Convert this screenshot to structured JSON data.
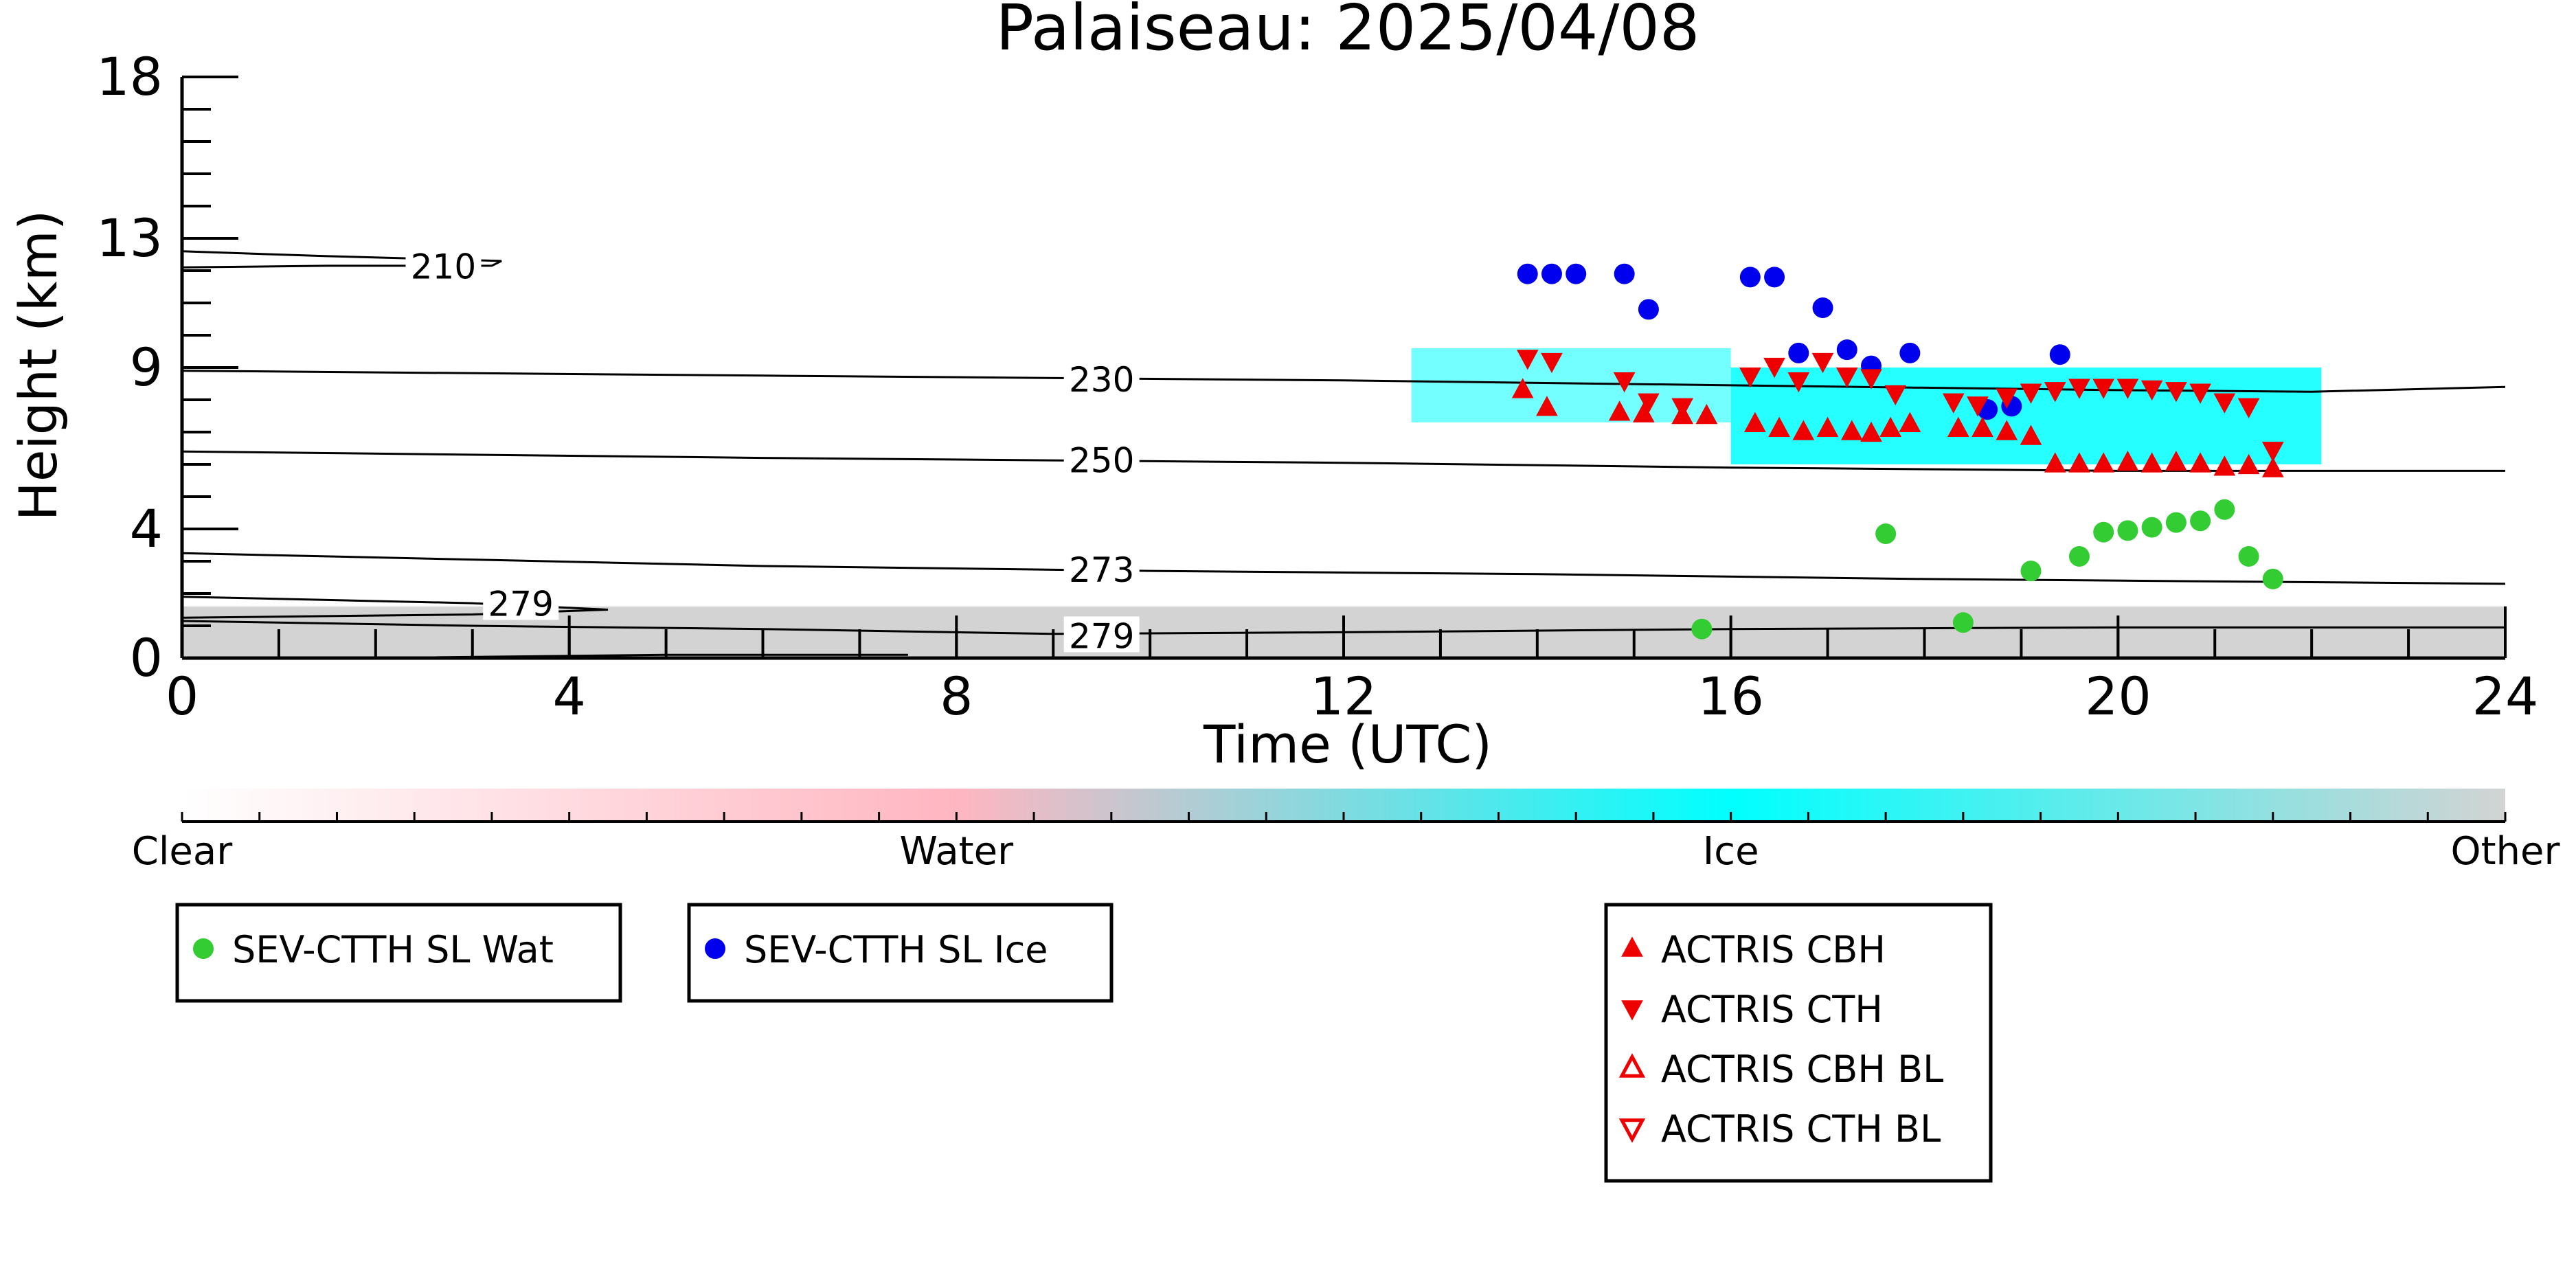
{
  "chart_data": {
    "type": "scatter",
    "title": "Palaiseau: 2025/04/08",
    "xlabel": "Time (UTC)",
    "ylabel": "Height (km)",
    "xlim": [
      0,
      24
    ],
    "ylim": [
      0,
      18
    ],
    "xticks": [
      0,
      4,
      8,
      12,
      16,
      20,
      24
    ],
    "yticks": [
      0,
      4,
      9,
      13,
      18
    ],
    "colorbar": {
      "labels": [
        "Clear",
        "Water",
        "Ice",
        "Other"
      ],
      "colors": [
        "#ffffff",
        "#ffb6c1",
        "#00ffff",
        "#d3d3d3"
      ]
    },
    "isotherms": [
      {
        "label": "210",
        "points": [
          [
            0,
            12.6
          ],
          [
            1.5,
            12.45
          ],
          [
            3.3,
            12.3
          ],
          [
            3.2,
            12.15
          ],
          [
            1.5,
            12.15
          ],
          [
            0,
            12.1
          ]
        ],
        "label_at": [
          2.7,
          12.1
        ]
      },
      {
        "label": "230",
        "points": [
          [
            0,
            8.9
          ],
          [
            6,
            8.75
          ],
          [
            12,
            8.6
          ],
          [
            16,
            8.45
          ],
          [
            20,
            8.3
          ],
          [
            22,
            8.25
          ],
          [
            24,
            8.4
          ]
        ],
        "label_at": [
          9.5,
          8.6
        ]
      },
      {
        "label": "250",
        "points": [
          [
            0,
            6.4
          ],
          [
            6,
            6.2
          ],
          [
            12,
            6.05
          ],
          [
            16,
            5.9
          ],
          [
            20,
            5.8
          ],
          [
            24,
            5.8
          ]
        ],
        "label_at": [
          9.5,
          6.1
        ]
      },
      {
        "label": "273",
        "points": [
          [
            0,
            3.25
          ],
          [
            3,
            3.05
          ],
          [
            6,
            2.85
          ],
          [
            10,
            2.7
          ],
          [
            14,
            2.6
          ],
          [
            18,
            2.45
          ],
          [
            22,
            2.35
          ],
          [
            24,
            2.3
          ]
        ],
        "label_at": [
          9.5,
          2.7
        ]
      },
      {
        "label": "279",
        "points": [
          [
            0,
            1.9
          ],
          [
            1.5,
            1.8
          ],
          [
            3,
            1.7
          ],
          [
            4.4,
            1.5
          ],
          [
            3,
            1.35
          ],
          [
            1.5,
            1.3
          ],
          [
            0,
            1.25
          ]
        ],
        "label_at": [
          3.5,
          1.65
        ]
      },
      {
        "label": "279",
        "points": [
          [
            0,
            1.15
          ],
          [
            3,
            1.0
          ],
          [
            6,
            0.9
          ],
          [
            9,
            0.75
          ],
          [
            12,
            0.8
          ],
          [
            16,
            0.9
          ],
          [
            20,
            0.95
          ],
          [
            24,
            0.95
          ]
        ],
        "label_at": [
          9.5,
          0.65
        ]
      },
      {
        "label": "",
        "points": [
          [
            2.5,
            0.02
          ],
          [
            5,
            0.1
          ],
          [
            7.5,
            0.1
          ]
        ],
        "label_at": null
      }
    ],
    "series": [
      {
        "name": "SEV-CTTH SL Wat",
        "marker": "circle",
        "color": "#33cc33",
        "points": [
          [
            15.7,
            0.9
          ],
          [
            17.6,
            3.85
          ],
          [
            18.4,
            1.1
          ],
          [
            19.1,
            2.7
          ],
          [
            19.6,
            3.15
          ],
          [
            19.85,
            3.9
          ],
          [
            20.1,
            3.95
          ],
          [
            20.35,
            4.05
          ],
          [
            20.6,
            4.2
          ],
          [
            20.85,
            4.25
          ],
          [
            21.1,
            4.6
          ],
          [
            21.35,
            3.15
          ],
          [
            21.6,
            2.45
          ]
        ]
      },
      {
        "name": "SEV-CTTH SL Ice",
        "marker": "circle",
        "color": "#0000ee",
        "points": [
          [
            13.9,
            11.9
          ],
          [
            14.15,
            11.9
          ],
          [
            14.4,
            11.9
          ],
          [
            14.9,
            11.9
          ],
          [
            15.15,
            10.8
          ],
          [
            16.2,
            11.8
          ],
          [
            16.45,
            11.8
          ],
          [
            16.95,
            10.85
          ],
          [
            16.7,
            9.45
          ],
          [
            17.2,
            9.55
          ],
          [
            17.45,
            9.05
          ],
          [
            17.85,
            9.45
          ],
          [
            18.65,
            7.7
          ],
          [
            18.9,
            7.8
          ],
          [
            19.4,
            9.4
          ]
        ]
      },
      {
        "name": "ACTRIS CBH",
        "marker": "triangle-up",
        "color": "#ee0000",
        "points": [
          [
            13.85,
            8.3
          ],
          [
            14.1,
            7.75
          ],
          [
            14.85,
            7.6
          ],
          [
            15.1,
            7.55
          ],
          [
            15.5,
            7.5
          ],
          [
            15.75,
            7.5
          ],
          [
            16.25,
            7.25
          ],
          [
            16.5,
            7.1
          ],
          [
            16.75,
            7.0
          ],
          [
            17.0,
            7.1
          ],
          [
            17.25,
            7.0
          ],
          [
            17.45,
            6.95
          ],
          [
            17.65,
            7.1
          ],
          [
            17.85,
            7.25
          ],
          [
            18.35,
            7.1
          ],
          [
            18.6,
            7.1
          ],
          [
            18.85,
            7.0
          ],
          [
            19.1,
            6.85
          ],
          [
            19.35,
            6.0
          ],
          [
            19.6,
            6.0
          ],
          [
            19.85,
            6.0
          ],
          [
            20.1,
            6.05
          ],
          [
            20.35,
            6.0
          ],
          [
            20.6,
            6.05
          ],
          [
            20.85,
            6.0
          ],
          [
            21.1,
            5.9
          ],
          [
            21.35,
            5.95
          ],
          [
            21.6,
            5.85
          ]
        ]
      },
      {
        "name": "ACTRIS CTH",
        "marker": "triangle-down",
        "color": "#ee0000",
        "points": [
          [
            13.9,
            9.3
          ],
          [
            14.15,
            9.2
          ],
          [
            14.9,
            8.6
          ],
          [
            15.15,
            7.95
          ],
          [
            15.5,
            7.8
          ],
          [
            16.2,
            8.75
          ],
          [
            16.45,
            9.05
          ],
          [
            16.7,
            8.6
          ],
          [
            16.95,
            9.2
          ],
          [
            17.2,
            8.75
          ],
          [
            17.45,
            8.7
          ],
          [
            17.7,
            8.2
          ],
          [
            18.3,
            7.95
          ],
          [
            18.55,
            7.85
          ],
          [
            18.85,
            8.1
          ],
          [
            19.1,
            8.25
          ],
          [
            19.35,
            8.3
          ],
          [
            19.6,
            8.4
          ],
          [
            19.85,
            8.4
          ],
          [
            20.1,
            8.4
          ],
          [
            20.35,
            8.35
          ],
          [
            20.6,
            8.3
          ],
          [
            20.85,
            8.25
          ],
          [
            21.1,
            7.95
          ],
          [
            21.35,
            7.8
          ],
          [
            21.6,
            6.45
          ]
        ]
      },
      {
        "name": "ACTRIS CBH BL",
        "marker": "triangle-up-open",
        "color": "#ee0000",
        "points": []
      },
      {
        "name": "ACTRIS CTH BL",
        "marker": "triangle-down-open",
        "color": "#ee0000",
        "points": []
      }
    ],
    "legend": [
      {
        "group": "left",
        "entries": [
          "SEV-CTTH SL Wat"
        ]
      },
      {
        "group": "middle",
        "entries": [
          "SEV-CTTH SL Ice"
        ]
      },
      {
        "group": "right",
        "entries": [
          "ACTRIS CBH",
          "ACTRIS CTH",
          "ACTRIS CBH BL",
          "ACTRIS CTH BL"
        ]
      }
    ],
    "grid": false
  }
}
